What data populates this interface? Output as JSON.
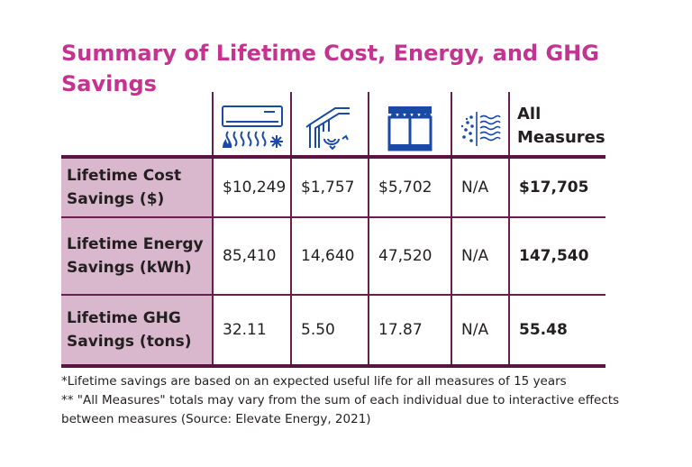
{
  "title": "Summary of Lifetime Cost, Energy, and GHG Savings",
  "icons": [
    "heat-pump-icon",
    "attic-insulation-icon",
    "window-icon",
    "air-sealing-icon"
  ],
  "colors": {
    "title": "#c4338f",
    "row_label_bg": "#d9b7cd",
    "rule": "#6b1e4e",
    "icon": "#1a4aa6"
  },
  "table": {
    "all_measures_header": "All Measures",
    "rows": [
      {
        "label": "Lifetime Cost Savings ($)",
        "values": [
          "$10,249",
          "$1,757",
          "$5,702",
          "N/A"
        ],
        "total": "$17,705"
      },
      {
        "label": "Lifetime Energy Savings (kWh)",
        "values": [
          "85,410",
          "14,640",
          "47,520",
          "N/A"
        ],
        "total": "147,540"
      },
      {
        "label": "Lifetime GHG Savings (tons)",
        "values": [
          "32.11",
          "5.50",
          "17.87",
          "N/A"
        ],
        "total": "55.48"
      }
    ]
  },
  "notes": [
    "*Lifetime savings are based on an expected useful life for all measures of 15 years",
    "** \"All Measures\" totals may vary from the sum of each individual due to interactive effects between measures (Source: Elevate Energy, 2021)"
  ]
}
